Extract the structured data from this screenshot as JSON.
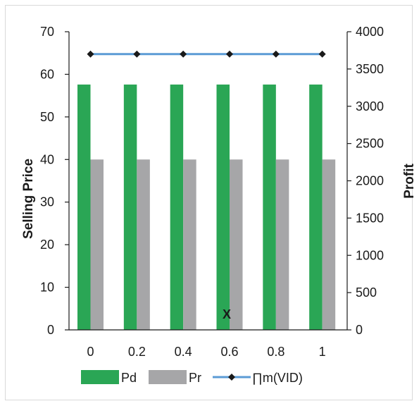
{
  "chart_data": {
    "type": "bar",
    "categories": [
      "0",
      "0.2",
      "0.4",
      "0.6",
      "0.8",
      "1"
    ],
    "series": [
      {
        "name": "Pd",
        "kind": "bar",
        "axis": "left",
        "color": "#2aa655",
        "values": [
          57.6,
          57.6,
          57.6,
          57.6,
          57.6,
          57.6
        ]
      },
      {
        "name": "Pr",
        "kind": "bar",
        "axis": "left",
        "color": "#a6a6a8",
        "values": [
          40,
          40,
          40,
          40,
          40,
          40
        ]
      },
      {
        "name": "∏m(VID)",
        "kind": "line",
        "axis": "right",
        "color": "#5b9bd5",
        "marker": "diamond",
        "marker_color": "#1a1a1a",
        "values": [
          3700,
          3700,
          3700,
          3700,
          3700,
          3700
        ]
      }
    ],
    "title": "",
    "xlabel": "",
    "ylabel": "Selling Price",
    "ylabel_right": "Profit",
    "ylim": [
      0,
      70
    ],
    "ylim_right": [
      0,
      4000
    ],
    "yticks": [
      "0",
      "10",
      "20",
      "30",
      "40",
      "50",
      "60",
      "70"
    ],
    "yticks_right": [
      "0",
      "500",
      "1000",
      "1500",
      "2000",
      "2500",
      "3000",
      "3500",
      "4000"
    ],
    "grid": false,
    "legend_position": "bottom",
    "annotation": "X"
  }
}
